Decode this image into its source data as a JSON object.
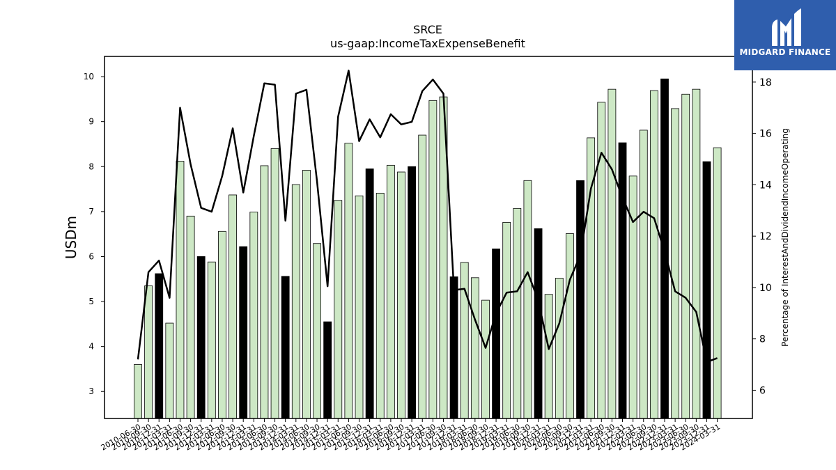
{
  "chart_data": {
    "type": "bar",
    "title": "SRCE",
    "subtitle": "us-gaap:IncomeTaxExpenseBenefit",
    "ylabel": "USDm",
    "ylabel_right": "Percentage of InterestAndDividendIncomeOperating",
    "ylim": [
      2.4,
      10.45
    ],
    "ylim_right": [
      4.9,
      19.0
    ],
    "yticks": [
      3,
      4,
      5,
      6,
      7,
      8,
      9,
      10
    ],
    "yticks_right": [
      6,
      8,
      10,
      12,
      14,
      16,
      18
    ],
    "colors": {
      "bar_light": "#cde8c5",
      "bar_dark": "#000000",
      "line": "#000000"
    },
    "categories": [
      "2010-06-30",
      "2010-09-30",
      "2010-12-31",
      "2011-03-31",
      "2011-06-30",
      "2011-09-30",
      "2011-12-31",
      "2012-03-31",
      "2012-06-30",
      "2012-09-30",
      "2012-12-31",
      "2013-03-31",
      "2013-06-30",
      "2013-09-30",
      "2013-12-31",
      "2014-03-31",
      "2014-06-30",
      "2014-09-30",
      "2014-12-31",
      "2015-03-31",
      "2015-06-30",
      "2015-09-30",
      "2015-12-31",
      "2016-03-31",
      "2016-06-30",
      "2016-09-30",
      "2016-12-31",
      "2017-03-31",
      "2017-06-30",
      "2017-09-30",
      "2017-12-31",
      "2018-03-31",
      "2018-06-30",
      "2018-09-30",
      "2018-12-31",
      "2019-03-31",
      "2019-06-30",
      "2019-09-30",
      "2019-12-31",
      "2020-03-31",
      "2020-06-30",
      "2020-09-30",
      "2020-12-31",
      "2021-03-31",
      "2021-06-30",
      "2021-09-30",
      "2021-12-31",
      "2022-03-31",
      "2022-06-30",
      "2022-09-30",
      "2022-12-31",
      "2023-03-31",
      "2023-06-30",
      "2023-09-30",
      "2023-12-31",
      "2024-03-31"
    ],
    "series": [
      {
        "values": [
          3.6,
          5.35,
          5.62,
          4.52,
          8.12,
          6.9,
          6.0,
          5.88,
          6.56,
          7.37,
          6.22,
          6.99,
          8.02,
          8.4,
          5.56,
          7.6,
          7.92,
          6.29,
          4.55,
          7.25,
          8.52,
          7.35,
          7.95,
          7.41,
          8.03,
          7.88,
          8.0,
          8.7,
          9.47,
          9.55,
          5.55,
          5.87,
          5.53,
          5.03,
          6.17,
          6.76,
          7.07,
          7.69,
          6.62,
          5.16,
          5.52,
          6.51,
          7.69,
          8.64,
          9.43,
          9.72,
          8.53,
          7.79,
          8.81,
          9.69,
          9.95,
          9.29,
          9.61,
          9.72,
          8.11,
          8.42
        ]
      },
      {
        "values": [
          7.2,
          10.6,
          11.05,
          9.6,
          17.0,
          14.8,
          13.1,
          12.95,
          14.35,
          16.2,
          13.7,
          15.9,
          17.95,
          17.9,
          12.6,
          17.55,
          17.7,
          14.15,
          10.05,
          16.65,
          18.45,
          15.7,
          16.55,
          15.85,
          16.75,
          16.35,
          16.45,
          17.65,
          18.1,
          17.55,
          9.9,
          9.95,
          8.75,
          7.65,
          9.0,
          9.8,
          9.85,
          10.6,
          9.5,
          7.6,
          8.6,
          10.3,
          11.25,
          13.85,
          15.25,
          14.6,
          13.5,
          12.55,
          12.95,
          12.7,
          11.4,
          9.85,
          9.6,
          9.05,
          7.1,
          7.25
        ]
      }
    ],
    "bar_highlight": [
      false,
      false,
      true,
      false,
      false,
      false,
      true,
      false,
      false,
      false,
      true,
      false,
      false,
      false,
      true,
      false,
      false,
      false,
      true,
      false,
      false,
      false,
      true,
      false,
      false,
      false,
      true,
      false,
      false,
      false,
      true,
      false,
      false,
      false,
      true,
      false,
      false,
      false,
      true,
      false,
      false,
      false,
      true,
      false,
      false,
      false,
      true,
      false,
      false,
      false,
      true,
      false,
      false,
      false,
      true,
      false
    ]
  },
  "logo": {
    "text": "MIDGARD FINANCE"
  }
}
